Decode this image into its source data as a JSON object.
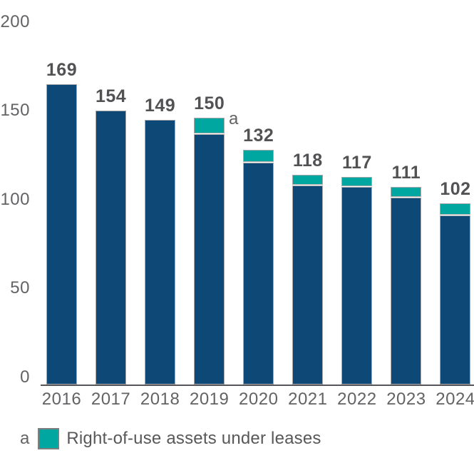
{
  "chart_data": {
    "type": "bar",
    "stacked": true,
    "title": "",
    "categories": [
      "2016",
      "2017",
      "2018",
      "2019",
      "2020",
      "2021",
      "2022",
      "2023",
      "2024"
    ],
    "totals": [
      169,
      154,
      149,
      150,
      132,
      118,
      117,
      111,
      102
    ],
    "series": [
      {
        "name": "base",
        "color": "#0e4877",
        "values": [
          169,
          154,
          149,
          141,
          125,
          112,
          111,
          105,
          95
        ]
      },
      {
        "name": "Right-of-use assets under leases",
        "color": "#00a7a1",
        "values": [
          0,
          0,
          0,
          9,
          7,
          6,
          6,
          6,
          7
        ],
        "estimated": true
      }
    ],
    "ylim": [
      0,
      200
    ],
    "yticks": [
      0,
      50,
      100,
      150,
      200
    ],
    "grid": false,
    "legend_position": "bottom-left",
    "footnote": {
      "marker": "a",
      "category": "2019"
    },
    "legend": {
      "marker": "a",
      "label": "Right-of-use assets under leases"
    }
  },
  "colors": {
    "bar_primary": "#0e4877",
    "bar_secondary": "#00a7a1",
    "bar_border": "#a9a9ab",
    "value_text": "#525255",
    "axis_text": "#636366",
    "axis_line": "#55555a",
    "background": "#ffffff"
  }
}
